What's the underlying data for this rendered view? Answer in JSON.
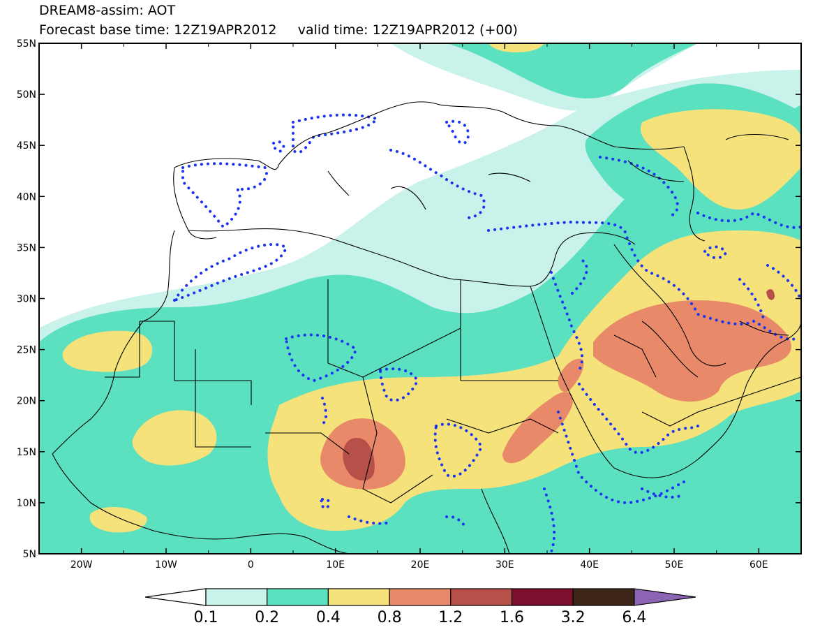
{
  "title": {
    "line1": "DREAM8-assim: AOT",
    "line2": "Forecast base time: 12Z19APR2012     valid time: 12Z19APR2012 (+00)"
  },
  "axes": {
    "lon_ticks": [
      "20W",
      "10W",
      "0",
      "10E",
      "20E",
      "30E",
      "40E",
      "50E",
      "60E"
    ],
    "lat_ticks": [
      "55N",
      "50N",
      "45N",
      "40N",
      "35N",
      "30N",
      "25N",
      "20N",
      "15N",
      "10N",
      "5N"
    ]
  },
  "colorbar": {
    "labels": [
      "0.1",
      "0.2",
      "0.4",
      "0.8",
      "1.2",
      "1.6",
      "3.2",
      "6.4"
    ],
    "colors": [
      "#c8f2ea",
      "#5be0c0",
      "#f5e27a",
      "#e88a6a",
      "#b8504a",
      "#7c0f2e",
      "#3e2618",
      "#8c64b4"
    ]
  },
  "map_colors": {
    "background": "#ffffff",
    "level1": "#c8f2ea",
    "level2": "#5be0c0",
    "level3": "#f5e27a",
    "level4": "#e88a6a",
    "level5": "#b8504a",
    "dots": "#1a33f0"
  }
}
